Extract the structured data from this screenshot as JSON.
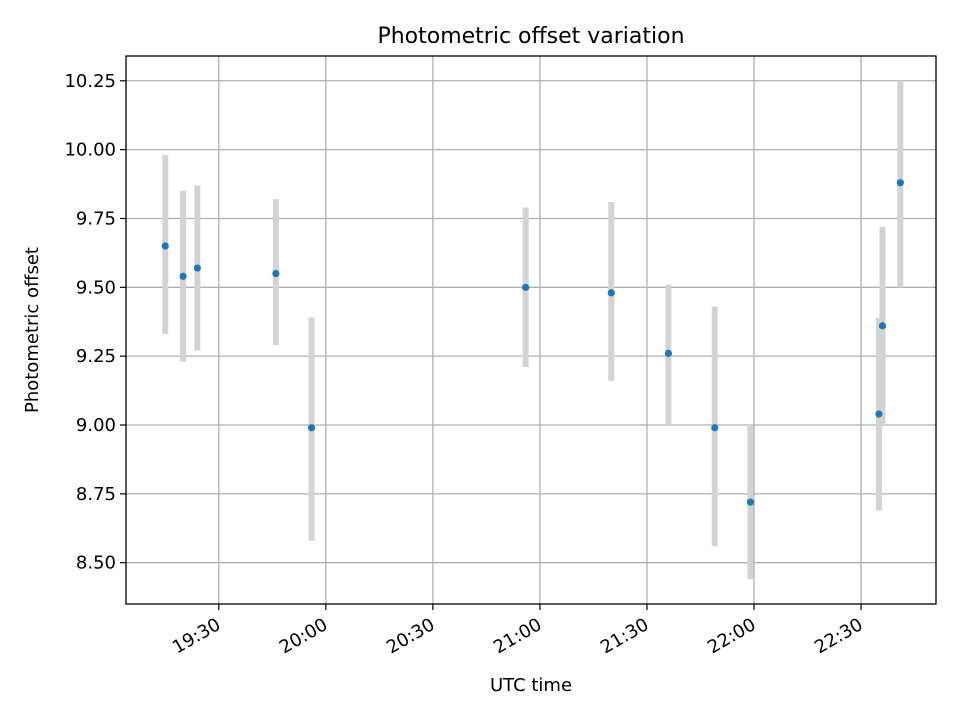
{
  "chart_data": {
    "type": "scatter",
    "title": "Photometric offset variation",
    "xlabel": "UTC time",
    "ylabel": "Photometric offset",
    "x_ticks": [
      "19:30",
      "20:00",
      "20:30",
      "21:00",
      "21:30",
      "22:00",
      "22:30"
    ],
    "y_ticks": [
      "8.50",
      "8.75",
      "9.00",
      "9.25",
      "9.50",
      "9.75",
      "10.00",
      "10.25"
    ],
    "xlim": [
      "19:04",
      "22:51"
    ],
    "ylim": [
      8.35,
      10.34
    ],
    "grid": true,
    "marker_color": "#1f77b4",
    "errorbar_color": "#d3d3d3",
    "points": [
      {
        "time": "19:15",
        "y": 9.65,
        "ylow": 9.33,
        "yhigh": 9.98
      },
      {
        "time": "19:20",
        "y": 9.54,
        "ylow": 9.23,
        "yhigh": 9.85
      },
      {
        "time": "19:24",
        "y": 9.57,
        "ylow": 9.27,
        "yhigh": 9.87
      },
      {
        "time": "19:46",
        "y": 9.55,
        "ylow": 9.29,
        "yhigh": 9.82
      },
      {
        "time": "19:56",
        "y": 8.99,
        "ylow": 8.58,
        "yhigh": 9.39
      },
      {
        "time": "20:56",
        "y": 9.5,
        "ylow": 9.21,
        "yhigh": 9.79
      },
      {
        "time": "21:20",
        "y": 9.48,
        "ylow": 9.16,
        "yhigh": 9.81
      },
      {
        "time": "21:36",
        "y": 9.26,
        "ylow": 9.0,
        "yhigh": 9.51
      },
      {
        "time": "21:49",
        "y": 8.99,
        "ylow": 8.56,
        "yhigh": 9.43
      },
      {
        "time": "21:59",
        "y": 8.72,
        "ylow": 8.44,
        "yhigh": 9.0
      },
      {
        "time": "22:35",
        "y": 9.04,
        "ylow": 8.69,
        "yhigh": 9.39
      },
      {
        "time": "22:36",
        "y": 9.36,
        "ylow": 9.0,
        "yhigh": 9.72
      },
      {
        "time": "22:41",
        "y": 9.88,
        "ylow": 9.5,
        "yhigh": 10.25
      }
    ]
  }
}
